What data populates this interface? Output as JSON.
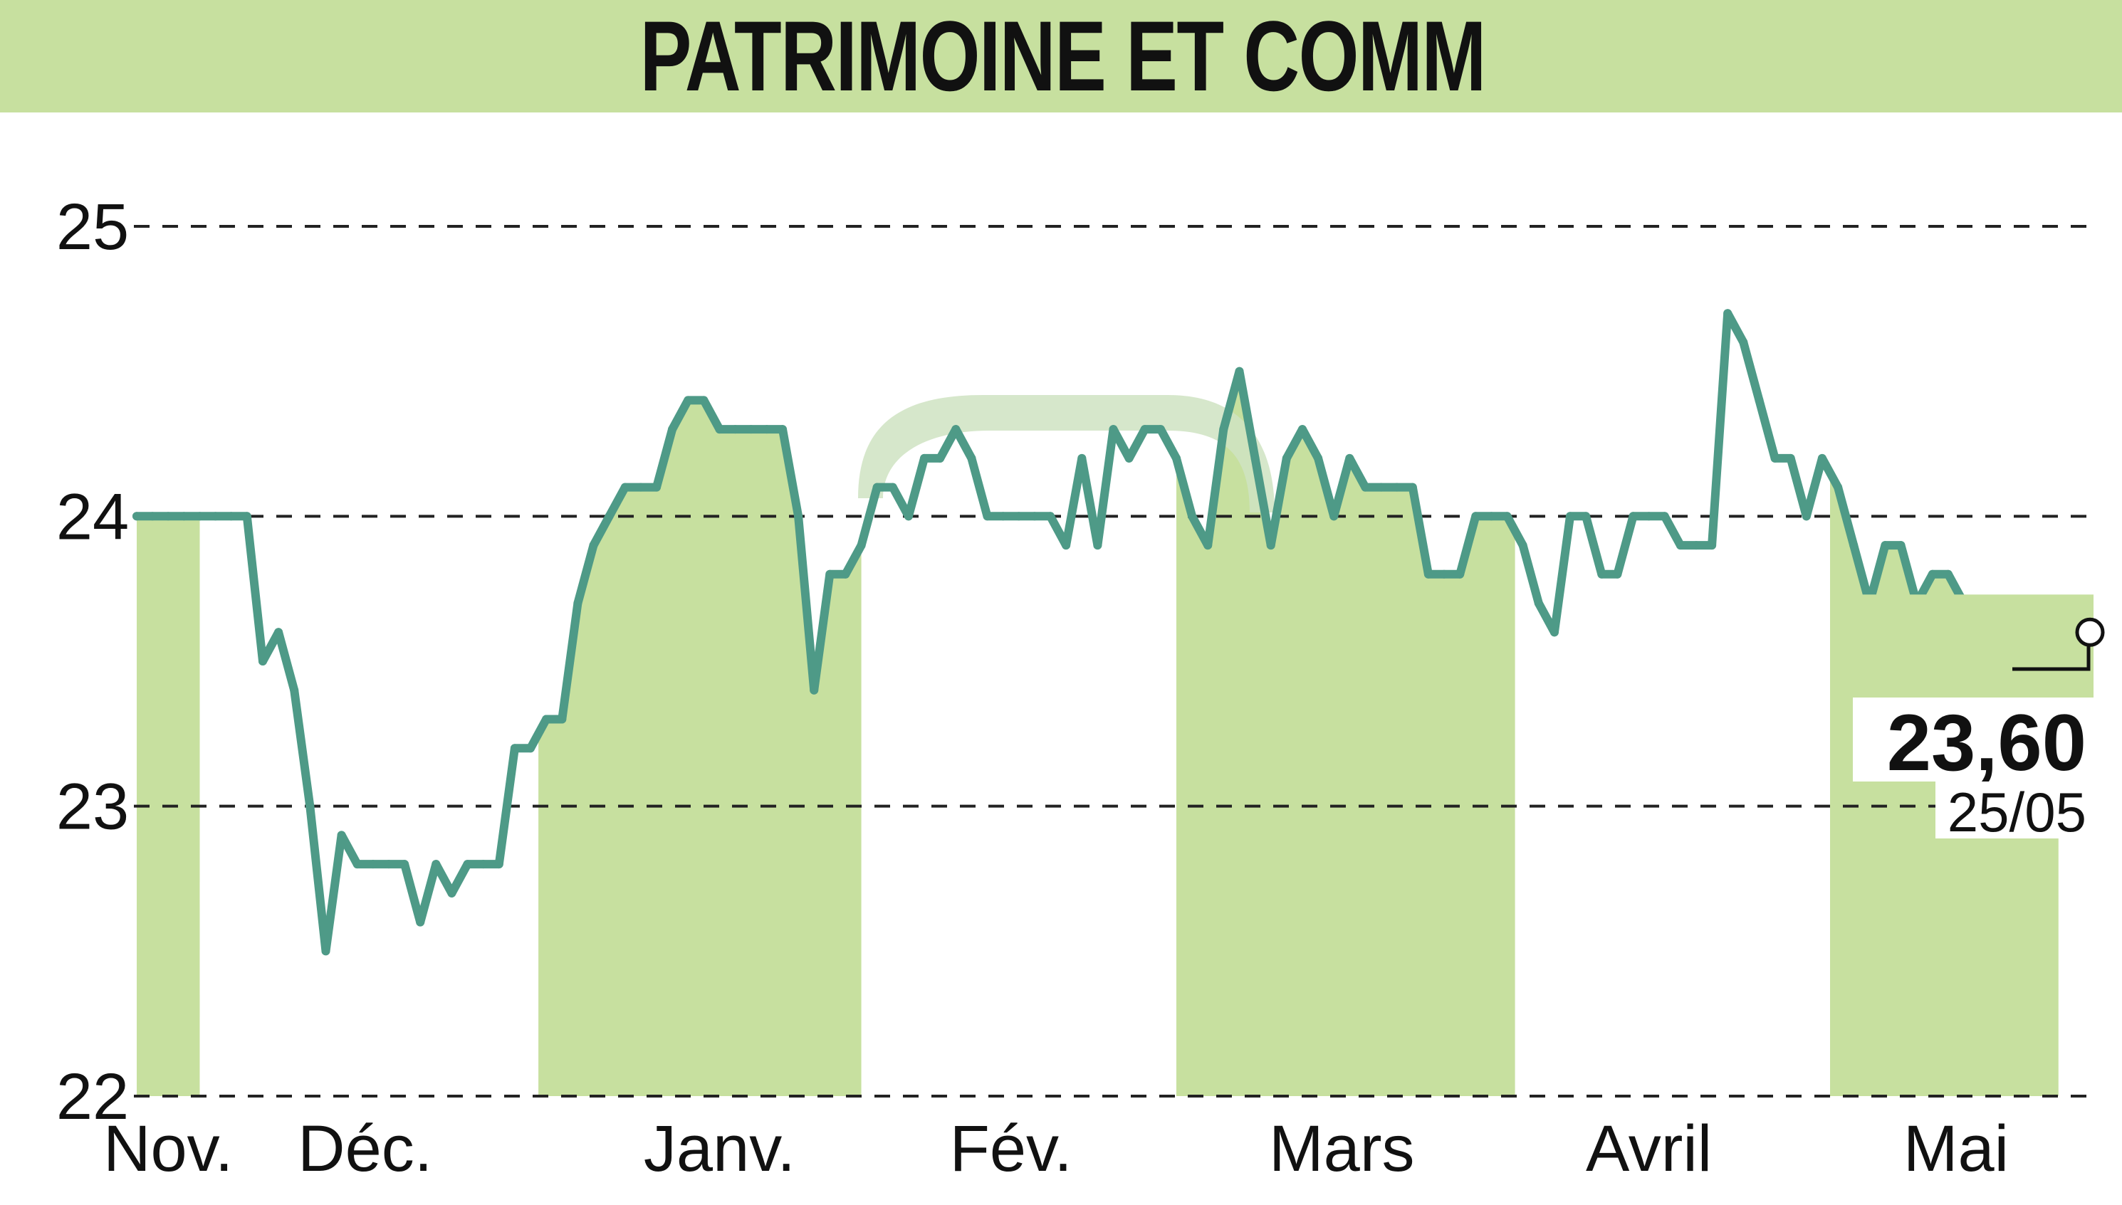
{
  "title": "PATRIMOINE ET COMM",
  "colors": {
    "title_bar": "#c7e09f",
    "month_band": "#c7e09f",
    "line": "#4e9a87",
    "grid": "#222222",
    "text": "#111111",
    "watermark": "#cfe3c2"
  },
  "last_point": {
    "value_label": "23,60",
    "date_label": "25/05"
  },
  "chart_data": {
    "type": "line",
    "title": "PATRIMOINE ET COMM",
    "xlabel": "",
    "ylabel": "",
    "ylim": [
      22,
      25
    ],
    "yticks": [
      22,
      23,
      24,
      25
    ],
    "grid": "horizontal dashed",
    "month_labels": [
      "Nov.",
      "Déc.",
      "Janv.",
      "Fév.",
      "Mars",
      "Avril",
      "Mai"
    ],
    "month_label_positions": [
      2,
      14.5,
      37,
      55.5,
      76.5,
      96,
      115.5
    ],
    "month_bands": [
      [
        0,
        4
      ],
      [
        25.5,
        46
      ],
      [
        66,
        87.5
      ],
      [
        107.5,
        122
      ]
    ],
    "series": [
      {
        "values": [
          24.0,
          24.0,
          24.0,
          24.0,
          24.0,
          24.0,
          24.0,
          24.0,
          23.5,
          23.6,
          23.4,
          23.0,
          22.5,
          22.9,
          22.8,
          22.8,
          22.8,
          22.8,
          22.6,
          22.8,
          22.7,
          22.8,
          22.8,
          22.8,
          23.2,
          23.2,
          23.3,
          23.3,
          23.7,
          23.9,
          24.0,
          24.1,
          24.1,
          24.1,
          24.3,
          24.4,
          24.4,
          24.3,
          24.3,
          24.3,
          24.3,
          24.3,
          24.0,
          23.4,
          23.8,
          23.8,
          23.9,
          24.1,
          24.1,
          24.0,
          24.2,
          24.2,
          24.3,
          24.2,
          24.0,
          24.0,
          24.0,
          24.0,
          24.0,
          23.9,
          24.2,
          23.9,
          24.3,
          24.2,
          24.3,
          24.3,
          24.2,
          24.0,
          23.9,
          24.3,
          24.5,
          24.2,
          23.9,
          24.2,
          24.3,
          24.2,
          24.0,
          24.2,
          24.1,
          24.1,
          24.1,
          24.1,
          23.8,
          23.8,
          23.8,
          24.0,
          24.0,
          24.0,
          23.9,
          23.7,
          23.6,
          24.0,
          24.0,
          23.8,
          23.8,
          24.0,
          24.0,
          24.0,
          23.9,
          23.9,
          23.9,
          24.7,
          24.6,
          24.4,
          24.2,
          24.2,
          24.0,
          24.2,
          24.1,
          23.9,
          23.7,
          23.9,
          23.9,
          23.7,
          23.8,
          23.8,
          23.7,
          23.7,
          23.7,
          23.7,
          23.7,
          23.7,
          23.7,
          23.6,
          23.6
        ]
      }
    ],
    "last_value": 23.6,
    "last_date": "25/05"
  }
}
